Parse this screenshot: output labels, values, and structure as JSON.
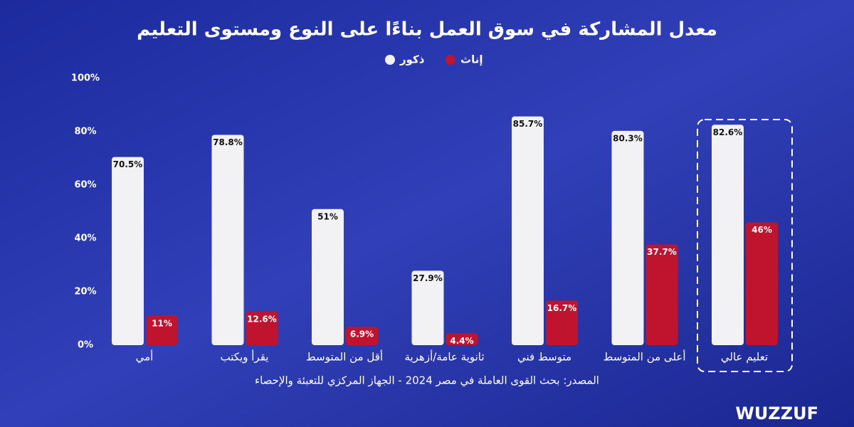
{
  "chart_data": {
    "type": "bar",
    "title": "معدل المشاركة في سوق العمل بناءًا على النوع ومستوى التعليم",
    "categories": [
      "أمي",
      "يقرأ ويكتب",
      "أقل من المتوسط",
      "ثانوية عامة/أزهرية",
      "متوسط فني",
      "أعلى من المتوسط",
      "تعليم عالي"
    ],
    "series": [
      {
        "name": "ذكور",
        "color": "#f2f2f5",
        "values": [
          70.5,
          78.8,
          51,
          27.9,
          85.7,
          80.3,
          82.6
        ],
        "value_labels": [
          "70.5%",
          "78.8%",
          "51%",
          "27.9%",
          "85.7%",
          "80.3%",
          "82.6%"
        ]
      },
      {
        "name": "إناث",
        "color": "#c0142e",
        "values": [
          11,
          12.6,
          6.9,
          4.4,
          16.7,
          37.7,
          46
        ],
        "value_labels": [
          "11%",
          "12.6%",
          "6.9%",
          "4.4%",
          "16.7%",
          "37.7%",
          "46%"
        ]
      }
    ],
    "ylim": [
      0,
      100
    ],
    "yticks": [
      {
        "value": 0,
        "label": "0%"
      },
      {
        "value": 20,
        "label": "20%"
      },
      {
        "value": 40,
        "label": "40%"
      },
      {
        "value": 60,
        "label": "60%"
      },
      {
        "value": 80,
        "label": "80%"
      },
      {
        "value": 100,
        "label": "100%"
      }
    ],
    "source": "المصدر: بحث القوى العاملة في مصر 2024 - الجهاز المركزي للتعبئة والإحصاء",
    "brand": "WUZZUF"
  }
}
